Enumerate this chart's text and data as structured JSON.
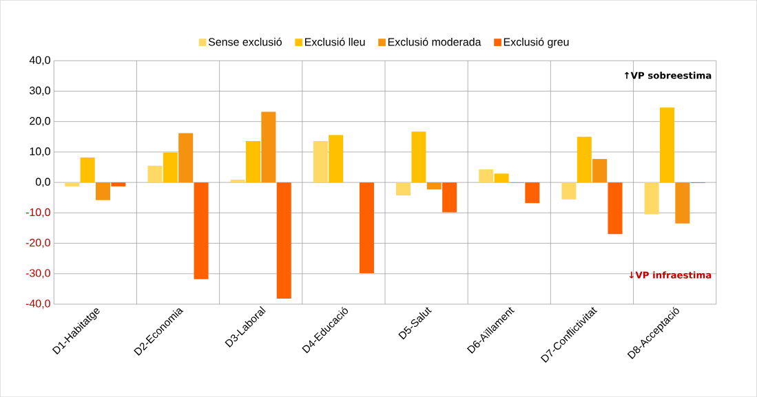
{
  "chart_data": {
    "type": "bar",
    "categories": [
      "D1-Habitatge",
      "D2-Economia",
      "D3-Laboral",
      "D4-Educació",
      "D5-Salut",
      "D6-Aïllament",
      "D7-Conflictivitat",
      "D8-Acceptació"
    ],
    "series": [
      {
        "name": "Sense exclusió",
        "color": "#ffd966",
        "values": [
          -1.3,
          5.5,
          0.9,
          13.6,
          -4.3,
          4.3,
          -5.6,
          -10.5
        ]
      },
      {
        "name": "Exclusió lleu",
        "color": "#ffc000",
        "values": [
          8.2,
          9.8,
          13.6,
          15.6,
          16.7,
          2.9,
          15.0,
          24.6
        ]
      },
      {
        "name": "Exclusió moderada",
        "color": "#f5920f",
        "values": [
          -5.8,
          16.2,
          23.2,
          null,
          -2.3,
          -0.2,
          7.7,
          -13.5
        ]
      },
      {
        "name": "Exclusió greu",
        "color": "#ff6000",
        "values": [
          -1.3,
          -31.8,
          -38.2,
          -29.8,
          -9.8,
          -6.8,
          -17.0,
          -0.2
        ]
      }
    ],
    "ylim": [
      -40,
      40
    ],
    "yticks": [
      {
        "value": -40,
        "label": "-40,0"
      },
      {
        "value": -30,
        "label": "-30,0"
      },
      {
        "value": -20,
        "label": "-20,0"
      },
      {
        "value": -10,
        "label": "-10,0"
      },
      {
        "value": 0,
        "label": "0,0"
      },
      {
        "value": 10,
        "label": "10,0"
      },
      {
        "value": 20,
        "label": "20,0"
      },
      {
        "value": 30,
        "label": "30,0"
      },
      {
        "value": 40,
        "label": "40,0"
      }
    ],
    "grid": true,
    "legend": "top",
    "annotations": [
      "↑VP sobreestima",
      "↓VP infraestima"
    ]
  }
}
